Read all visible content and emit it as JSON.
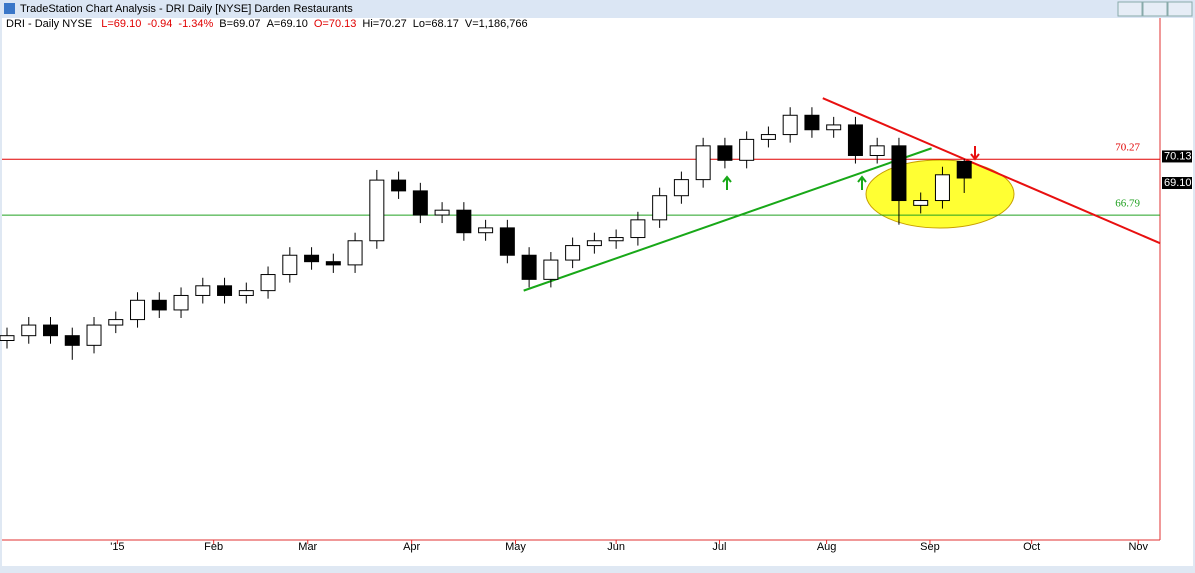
{
  "window": {
    "title": "TradeStation Chart Analysis - DRI Daily [NYSE] Darden Restaurants"
  },
  "header": {
    "symbol": "DRI - Daily  NYSE",
    "fields": [
      "L=69.10",
      "-0.94",
      "-1.34%",
      "B=69.07",
      "A=69.10",
      "O=70.13",
      "Hi=70.27",
      "Lo=68.17",
      "V=1,186,766"
    ]
  },
  "chart_data": {
    "type": "candlestick",
    "x": [
      0,
      4,
      8,
      12,
      16,
      20,
      24,
      28,
      32,
      36,
      40,
      44,
      48,
      52,
      56,
      60,
      64,
      68,
      72,
      76,
      80,
      84,
      88,
      92,
      96,
      100,
      104,
      108,
      112,
      116,
      120,
      124,
      128,
      132,
      136,
      140,
      144,
      148,
      152,
      156,
      160,
      164,
      168,
      172,
      176
    ],
    "open": [
      59.0,
      59.3,
      59.96,
      59.3,
      58.7,
      59.96,
      60.3,
      61.5,
      60.9,
      61.8,
      62.4,
      61.8,
      62.1,
      63.1,
      64.3,
      63.9,
      63.7,
      65.2,
      68.97,
      68.3,
      66.8,
      67.1,
      65.7,
      66.0,
      64.3,
      62.8,
      64.0,
      64.9,
      65.2,
      65.4,
      66.5,
      68.0,
      69.0,
      71.1,
      70.2,
      71.5,
      71.8,
      73.0,
      72.1,
      72.4,
      70.5,
      71.1,
      67.4,
      67.7,
      70.13
    ],
    "high": [
      59.8,
      60.46,
      60.46,
      59.8,
      60.46,
      60.8,
      62.0,
      62.0,
      62.3,
      62.9,
      62.9,
      62.6,
      63.6,
      64.8,
      64.8,
      64.4,
      65.7,
      69.6,
      69.5,
      68.8,
      67.6,
      67.6,
      66.5,
      66.5,
      64.8,
      64.5,
      65.4,
      65.7,
      65.9,
      67.0,
      68.5,
      69.5,
      71.6,
      71.6,
      72.0,
      72.3,
      73.5,
      73.5,
      72.9,
      72.9,
      71.6,
      71.6,
      68.2,
      69.8,
      70.27
    ],
    "low": [
      58.5,
      58.8,
      58.8,
      57.8,
      58.2,
      59.46,
      59.8,
      60.4,
      60.4,
      61.3,
      61.3,
      61.3,
      61.6,
      62.6,
      63.4,
      63.2,
      63.2,
      64.7,
      67.8,
      66.3,
      66.3,
      65.2,
      65.2,
      63.8,
      62.3,
      62.3,
      63.5,
      64.4,
      64.7,
      64.9,
      66.0,
      67.5,
      68.5,
      69.7,
      69.7,
      71.0,
      71.3,
      71.6,
      71.6,
      70.0,
      70.0,
      66.2,
      66.9,
      67.2,
      68.17
    ],
    "close": [
      59.3,
      59.96,
      59.3,
      58.7,
      59.96,
      60.3,
      61.5,
      60.9,
      61.8,
      62.4,
      61.8,
      62.1,
      63.1,
      64.3,
      63.9,
      63.7,
      65.2,
      68.97,
      68.3,
      66.8,
      67.1,
      65.7,
      66.0,
      64.3,
      62.8,
      64.0,
      64.9,
      65.2,
      65.4,
      66.5,
      68.0,
      69.0,
      71.1,
      70.2,
      71.5,
      71.8,
      73.0,
      72.1,
      72.4,
      70.5,
      71.1,
      67.7,
      67.7,
      69.3,
      69.1
    ],
    "xlim": [
      0,
      212
    ],
    "xticks": [
      {
        "value": 20.3,
        "label": "'15"
      },
      {
        "value": 38,
        "label": "Feb"
      },
      {
        "value": 55.3,
        "label": "Mar"
      },
      {
        "value": 74.4,
        "label": "Apr"
      },
      {
        "value": 93.5,
        "label": "May"
      },
      {
        "value": 112,
        "label": "Jun"
      },
      {
        "value": 131,
        "label": "Jul"
      },
      {
        "value": 150.7,
        "label": "Aug"
      },
      {
        "value": 169.7,
        "label": "Sep"
      },
      {
        "value": 188.4,
        "label": "Oct"
      },
      {
        "value": 208,
        "label": "Nov"
      }
    ],
    "ylim": [
      46.6,
      78.3
    ],
    "hlines": [
      {
        "value": 70.27,
        "color": "#e00000"
      },
      {
        "value": 66.79,
        "color": "#20a020"
      }
    ],
    "last_prices": [
      70.13,
      {
        "value": 69.1,
        "label": "69.10"
      }
    ],
    "trendlines": [
      {
        "x": [
          95,
          170
        ],
        "y": [
          62.1,
          70.95
        ],
        "color": "#18a818"
      },
      {
        "x": [
          150,
          212
        ],
        "y": [
          74.06,
          65.05
        ],
        "color": "#e81010"
      }
    ],
    "up_color": "#ffffff",
    "down_color": "#000000"
  }
}
